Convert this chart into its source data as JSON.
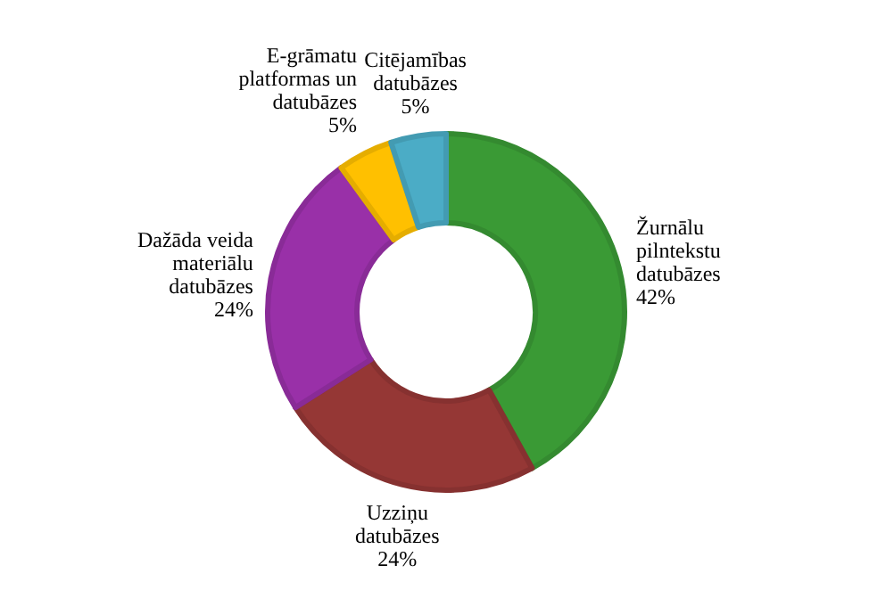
{
  "chart_data": {
    "type": "donut",
    "categories": [
      "Žurnālu pilntekstu datubāzes",
      "Uzziņu datubāzes",
      "Dažāda veida materiālu datubāzes",
      "E-grāmatu platformas un datubāzes",
      "Citējamības datubāzes"
    ],
    "values": [
      42,
      24,
      24,
      5,
      5
    ],
    "value_labels": [
      "42%",
      "24%",
      "24%",
      "5%",
      "5%"
    ],
    "colors": [
      "#3a9a35",
      "#953735",
      "#9930a8",
      "#ffc000",
      "#4bacc6"
    ]
  }
}
